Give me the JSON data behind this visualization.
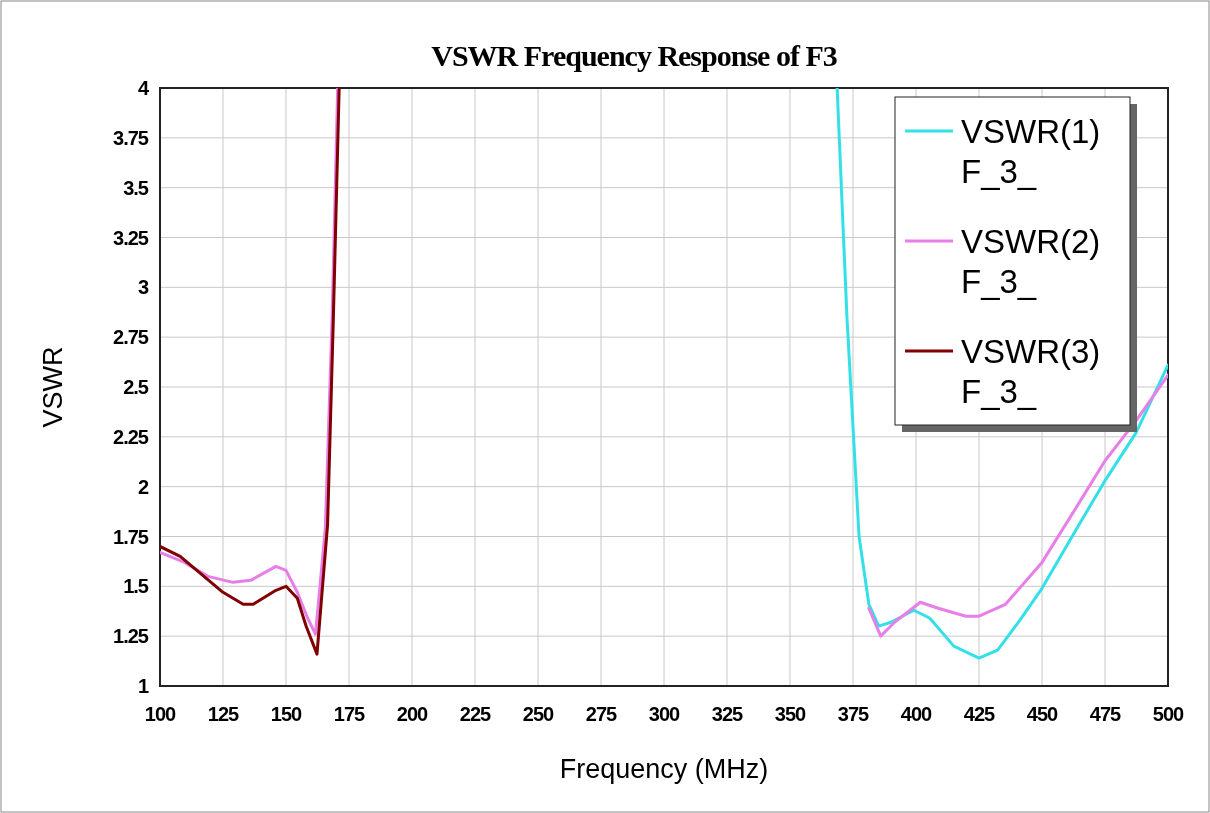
{
  "chart_data": {
    "type": "line",
    "title": "VSWR Frequency Response of F3",
    "xlabel": "Frequency (MHz)",
    "ylabel": "VSWR",
    "xlim": [
      100,
      500
    ],
    "xticks": [
      100,
      125,
      150,
      175,
      200,
      225,
      250,
      275,
      300,
      325,
      350,
      375,
      400,
      425,
      450,
      475,
      500
    ],
    "ylim": [
      1,
      4
    ],
    "yticks": [
      1,
      1.25,
      1.5,
      1.75,
      2,
      2.25,
      2.5,
      2.75,
      3,
      3.25,
      3.5,
      3.75,
      4
    ],
    "grid": true,
    "legend": "top right",
    "marker": "none",
    "line_style": "solid",
    "series": [
      {
        "name": "VSWR(1) F_3_",
        "color": "#33e0e8",
        "x": [
          368.7,
          372.6,
          377.4,
          381.3,
          385.2,
          390,
          399.2,
          405.5,
          415,
          425,
          432.4,
          441.8,
          450,
          463.8,
          475,
          487.3,
          500
        ],
        "values": [
          4,
          2.85,
          1.75,
          1.41,
          1.3,
          1.32,
          1.38,
          1.34,
          1.2,
          1.14,
          1.18,
          1.34,
          1.49,
          1.79,
          2.03,
          2.27,
          2.61
        ]
      },
      {
        "name": "VSWR(2) F_3_",
        "color": "#e87ee8",
        "x": [
          100,
          109.7,
          119,
          129,
          136,
          146,
          150,
          154.5,
          158.6,
          161.7,
          165.6,
          168.3,
          170.5,
          300,
          381.3,
          386,
          391.5,
          401.7,
          408.8,
          419.8,
          425,
          435.5,
          450,
          463.8,
          475,
          487.3,
          500
        ],
        "values": [
          1.67,
          1.62,
          1.55,
          1.52,
          1.53,
          1.6,
          1.58,
          1.47,
          1.34,
          1.26,
          1.79,
          2.85,
          4,
          null,
          1.39,
          1.25,
          1.32,
          1.42,
          1.39,
          1.35,
          1.35,
          1.41,
          1.62,
          1.9,
          2.13,
          2.33,
          2.56
        ]
      },
      {
        "name": "VSWR(3) F_3_",
        "color": "#800000",
        "x": [
          100,
          108,
          125,
          133,
          137,
          146,
          150,
          154.5,
          158,
          162.3,
          166.5,
          168.8,
          171.1
        ],
        "values": [
          1.7,
          1.65,
          1.47,
          1.41,
          1.41,
          1.48,
          1.5,
          1.44,
          1.3,
          1.16,
          1.81,
          2.85,
          4
        ]
      }
    ]
  }
}
